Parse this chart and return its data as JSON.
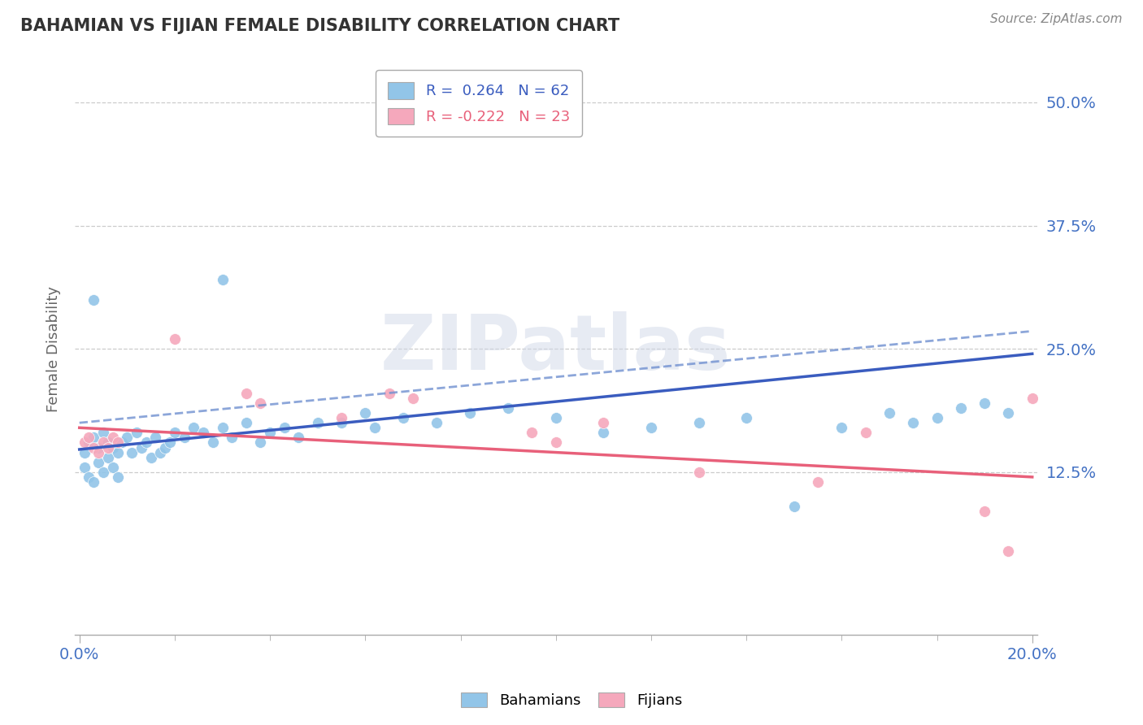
{
  "title": "BAHAMIAN VS FIJIAN FEMALE DISABILITY CORRELATION CHART",
  "source": "Source: ZipAtlas.com",
  "ylabel": "Female Disability",
  "xlim": [
    -0.001,
    0.201
  ],
  "ylim": [
    -0.04,
    0.54
  ],
  "xtick_positions": [
    0.0,
    0.2
  ],
  "xticklabels": [
    "0.0%",
    "20.0%"
  ],
  "ytick_positions": [
    0.125,
    0.25,
    0.375,
    0.5
  ],
  "ytick_labels": [
    "12.5%",
    "25.0%",
    "37.5%",
    "50.0%"
  ],
  "bahamians_color": "#92c5e8",
  "fijians_color": "#f5a8bc",
  "trend_blue_color": "#3a5cbf",
  "trend_pink_color": "#e8607a",
  "trend_blue_dash_color": "#7090d0",
  "watermark": "ZIPatlas",
  "legend_r_blue": "R =  0.264   N = 62",
  "legend_r_pink": "R = -0.222   N = 23",
  "bahamians_x": [
    0.001,
    0.001,
    0.002,
    0.002,
    0.003,
    0.003,
    0.004,
    0.004,
    0.005,
    0.005,
    0.006,
    0.006,
    0.007,
    0.007,
    0.008,
    0.008,
    0.009,
    0.01,
    0.011,
    0.012,
    0.013,
    0.014,
    0.015,
    0.016,
    0.017,
    0.018,
    0.019,
    0.02,
    0.022,
    0.024,
    0.026,
    0.028,
    0.03,
    0.032,
    0.035,
    0.038,
    0.04,
    0.043,
    0.046,
    0.05,
    0.055,
    0.06,
    0.062,
    0.068,
    0.075,
    0.082,
    0.09,
    0.1,
    0.11,
    0.12,
    0.13,
    0.14,
    0.15,
    0.16,
    0.17,
    0.175,
    0.18,
    0.185,
    0.19,
    0.195,
    0.003,
    0.03
  ],
  "bahamians_y": [
    0.145,
    0.13,
    0.155,
    0.12,
    0.16,
    0.115,
    0.15,
    0.135,
    0.165,
    0.125,
    0.155,
    0.14,
    0.15,
    0.13,
    0.145,
    0.12,
    0.155,
    0.16,
    0.145,
    0.165,
    0.15,
    0.155,
    0.14,
    0.16,
    0.145,
    0.15,
    0.155,
    0.165,
    0.16,
    0.17,
    0.165,
    0.155,
    0.17,
    0.16,
    0.175,
    0.155,
    0.165,
    0.17,
    0.16,
    0.175,
    0.175,
    0.185,
    0.17,
    0.18,
    0.175,
    0.185,
    0.19,
    0.18,
    0.165,
    0.17,
    0.175,
    0.18,
    0.09,
    0.17,
    0.185,
    0.175,
    0.18,
    0.19,
    0.195,
    0.185,
    0.3,
    0.32
  ],
  "fijians_x": [
    0.001,
    0.002,
    0.003,
    0.004,
    0.005,
    0.006,
    0.007,
    0.008,
    0.02,
    0.035,
    0.055,
    0.065,
    0.07,
    0.095,
    0.1,
    0.11,
    0.13,
    0.155,
    0.165,
    0.19,
    0.195,
    0.2,
    0.038
  ],
  "fijians_y": [
    0.155,
    0.16,
    0.15,
    0.145,
    0.155,
    0.15,
    0.16,
    0.155,
    0.26,
    0.205,
    0.18,
    0.205,
    0.2,
    0.165,
    0.155,
    0.175,
    0.125,
    0.115,
    0.165,
    0.085,
    0.045,
    0.2,
    0.195
  ],
  "trend_bah_x0": 0.0,
  "trend_bah_x1": 0.2,
  "trend_bah_y0": 0.148,
  "trend_bah_y1": 0.245,
  "trend_dash_y0": 0.175,
  "trend_dash_y1": 0.268,
  "trend_fij_x0": 0.0,
  "trend_fij_x1": 0.2,
  "trend_fij_y0": 0.17,
  "trend_fij_y1": 0.12
}
